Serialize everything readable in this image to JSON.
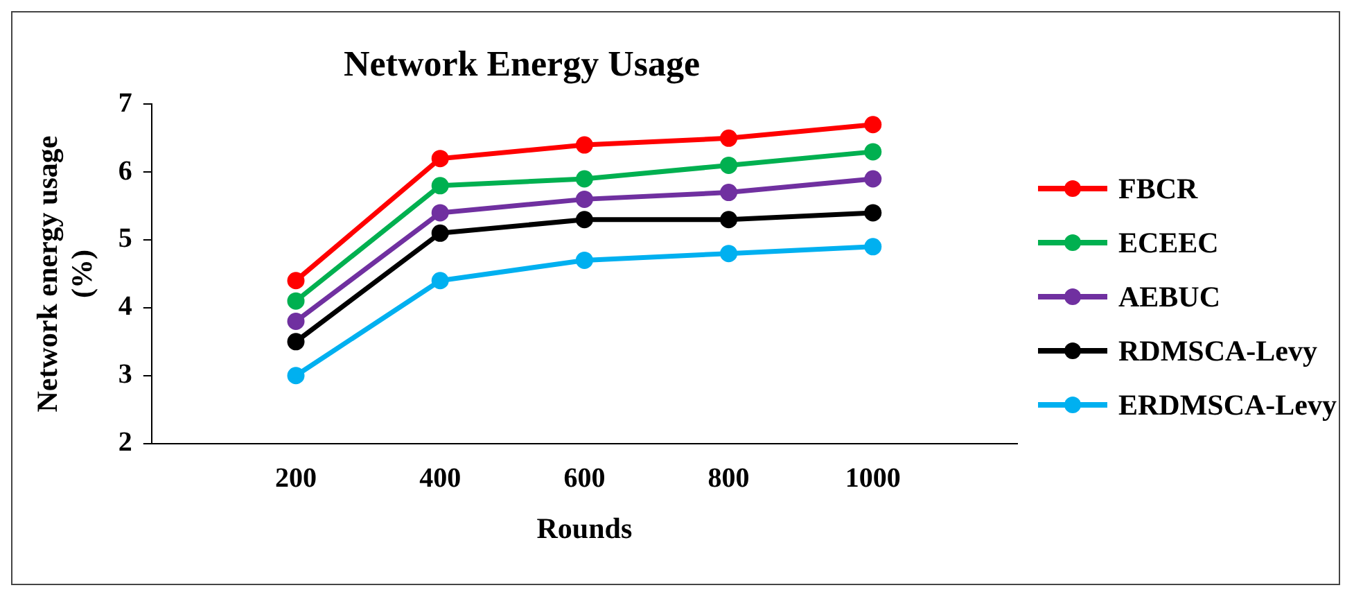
{
  "chart_data": {
    "type": "line",
    "title": "Network Energy Usage",
    "xlabel": "Rounds",
    "ylabel": "Network energy usage (%)",
    "categories": [
      null,
      "200",
      "400",
      "600",
      "800",
      "1000",
      null
    ],
    "series": [
      {
        "name": "FBCR",
        "color": "#ff0000",
        "values": [
          null,
          4.4,
          6.2,
          6.4,
          6.5,
          6.7,
          null
        ]
      },
      {
        "name": "ECEEC",
        "color": "#00b050",
        "values": [
          null,
          4.1,
          5.8,
          5.9,
          6.1,
          6.3,
          null
        ]
      },
      {
        "name": "AEBUC",
        "color": "#7030a0",
        "values": [
          null,
          3.8,
          5.4,
          5.6,
          5.7,
          5.9,
          null
        ]
      },
      {
        "name": "RDMSCA-Levy",
        "color": "#000000",
        "values": [
          null,
          3.5,
          5.1,
          5.3,
          5.3,
          5.4,
          null
        ]
      },
      {
        "name": "ERDMSCA-Levy",
        "color": "#00b0f0",
        "values": [
          null,
          3.0,
          4.4,
          4.7,
          4.8,
          4.9,
          null
        ]
      }
    ],
    "ylim": [
      2,
      7
    ],
    "yticks": [
      2,
      3,
      4,
      5,
      6,
      7
    ],
    "grid": false,
    "legend": "right",
    "marker": "circle",
    "line_style": "solid"
  }
}
